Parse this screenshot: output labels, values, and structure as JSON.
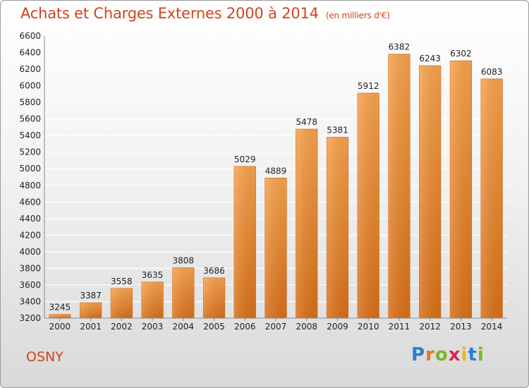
{
  "header": {
    "title": "Achats et Charges Externes 2000 à 2014",
    "subtitle": "(en milliers d'€)"
  },
  "footer": {
    "city": "OSNY",
    "brand_letters": [
      "P",
      "r",
      "o",
      "x",
      "i",
      "t",
      "i"
    ],
    "brand_colors": [
      "#2a7fd4",
      "#e8731f",
      "#7bb52a",
      "#d6285a",
      "#e8b81a",
      "#2a7fd4",
      "#7bb52a"
    ]
  },
  "chart_data": {
    "type": "bar",
    "categories": [
      "2000",
      "2001",
      "2002",
      "2003",
      "2004",
      "2005",
      "2006",
      "2007",
      "2008",
      "2009",
      "2010",
      "2011",
      "2012",
      "2013",
      "2014"
    ],
    "values": [
      3245,
      3387,
      3558,
      3635,
      3808,
      3686,
      5029,
      4889,
      5478,
      5381,
      5912,
      6382,
      6243,
      6302,
      6083
    ],
    "title": "Achats et Charges Externes 2000 à 2014",
    "subtitle": "(en milliers d'€)",
    "ylim": [
      3200,
      6600
    ],
    "yticks": [
      3200,
      3400,
      3600,
      3800,
      4000,
      4200,
      4400,
      4600,
      4800,
      5000,
      5200,
      5400,
      5600,
      5800,
      6000,
      6200,
      6400,
      6600
    ],
    "grid": true,
    "legend": "none",
    "colors": {
      "bar_light": "#f7a24c",
      "bar_dark": "#d86f18",
      "grid": "#ffffff",
      "text": "#222222",
      "accent": "#d1441f"
    }
  }
}
